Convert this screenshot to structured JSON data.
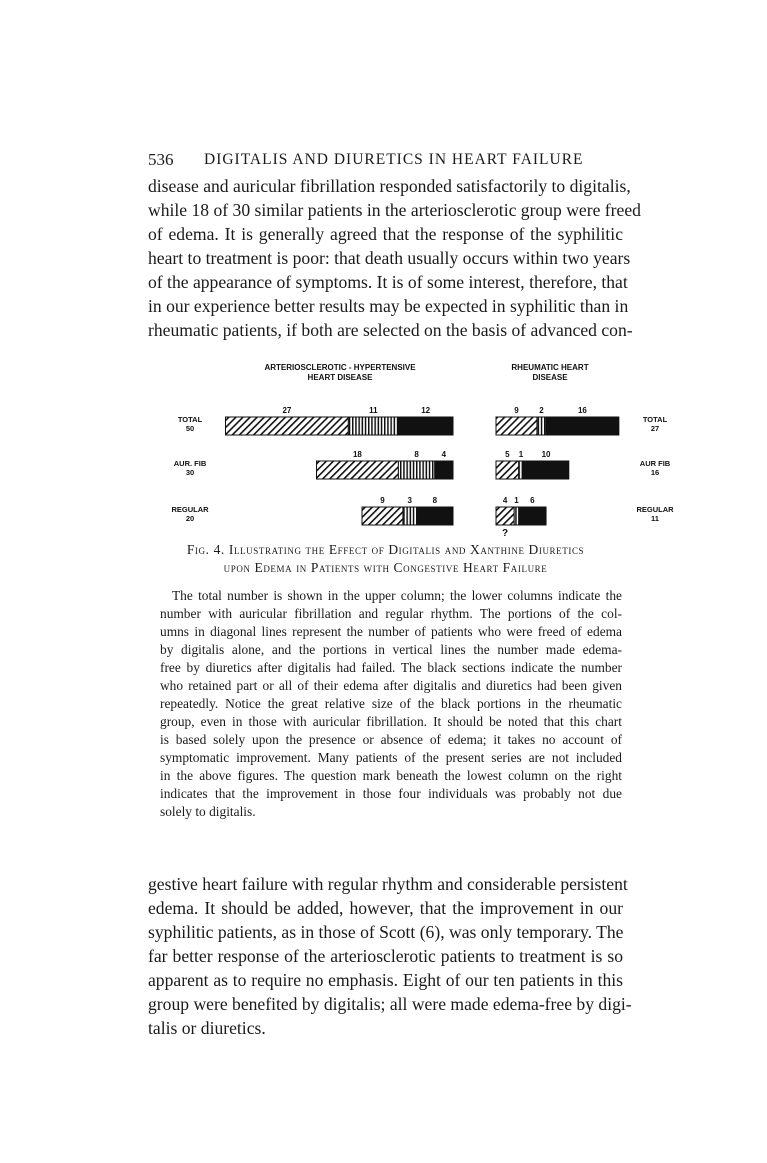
{
  "header": {
    "page_number": "536",
    "running_title": "DIGITALIS AND DIURETICS IN HEART FAILURE"
  },
  "top_paragraph": [
    "disease and auricular fibrillation responded satisfactorily to digitalis,",
    "while 18 of 30 similar patients in the arteriosclerotic group were freed",
    "of edema.  It is generally agreed that the response of the syphilitic",
    "heart to treatment is poor: that death usually occurs within two years",
    "of the appearance of symptoms.  It is of some interest, therefore, that",
    "in our experience better results may be expected in syphilitic than in",
    "rheumatic patients, if both are selected on the basis of advanced con-"
  ],
  "chart_data": {
    "type": "bar",
    "orientation": "horizontal-stacked",
    "colors": {
      "digitalis": "diagonal-hatch",
      "diuretics": "vertical-lines",
      "retained": "#111111"
    },
    "groups": [
      {
        "title": [
          "ARTERIOSCLEROTIC - HYPERTENSIVE",
          "HEART DISEASE"
        ],
        "align": "right",
        "rows": [
          {
            "label": "TOTAL",
            "count": "50",
            "values": [
              27,
              11,
              12
            ]
          },
          {
            "label": "AUR. FIB",
            "count": "30",
            "values": [
              18,
              8,
              4
            ]
          },
          {
            "label": "REGULAR",
            "count": "20",
            "values": [
              9,
              3,
              8
            ]
          }
        ]
      },
      {
        "title": [
          "RHEUMATIC  HEART",
          "DISEASE"
        ],
        "align": "left",
        "rows": [
          {
            "label": "TOTAL",
            "count": "27",
            "values": [
              9,
              2,
              16
            ]
          },
          {
            "label": "AUR FIB",
            "count": "16",
            "values": [
              5,
              1,
              10
            ]
          },
          {
            "label": "REGULAR",
            "count": "11",
            "values": [
              4,
              1,
              6
            ],
            "annotation": "?"
          }
        ]
      }
    ]
  },
  "caption": {
    "line1": "Fig. 4. Illustrating the Effect of Digitalis and Xanthine Diuretics",
    "line2": "upon Edema in Patients with Congestive Heart Failure"
  },
  "note": [
    "The total number is shown in the upper column; the lower columns indicate the",
    "number with auricular fibrillation and regular rhythm.  The portions of the col-",
    "umns in diagonal lines represent the number of patients who were freed of edema",
    "by digitalis alone, and the portions in vertical lines the number made edema-",
    "free by diuretics after digitalis had failed.  The black sections indicate the number",
    "who retained part or all of their edema after digitalis and diuretics had been given",
    "repeatedly.  Notice the great relative size of the black portions in the rheumatic",
    "group, even in those with auricular fibrillation.  It should be noted that this chart",
    "is based solely upon the presence or absence of edema; it takes no account of",
    "symptomatic improvement.  Many patients of the present series are not included",
    "in the above figures.  The question mark beneath the lowest column on the right",
    "indicates that the improvement in those four individuals was probably not due",
    "solely to digitalis."
  ],
  "bottom_paragraph": [
    "gestive heart failure with regular rhythm and considerable persistent",
    "edema.  It should be added, however, that the improvement in our",
    "syphilitic patients, as in those of Scott (6), was only temporary.  The",
    "far better response of the arteriosclerotic patients to treatment is so",
    "apparent as to require no emphasis.  Eight of our ten patients in this",
    "group were benefited by digitalis; all were made edema-free by digi-",
    "talis or diuretics."
  ]
}
